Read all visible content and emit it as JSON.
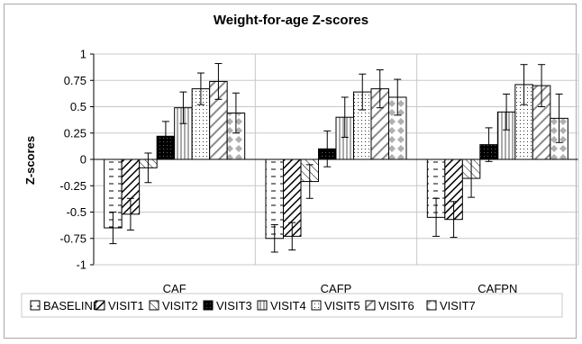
{
  "chart_data": {
    "type": "bar",
    "title": "Weight-for-age Z-scores",
    "xlabel": "",
    "ylabel": "Z-scores",
    "ylim": [
      -1,
      1
    ],
    "yticks": [
      "1",
      "0.75",
      "0.5",
      "0.25",
      "0",
      "-0.25",
      "-0.5",
      "-0.75",
      "-1"
    ],
    "grid": true,
    "legend_position": "bottom",
    "categories": [
      "CAF",
      "CAFP",
      "CAFPN"
    ],
    "series": [
      {
        "name": "BASELINE",
        "pattern": "dashes",
        "values": [
          -0.65,
          -0.75,
          -0.55
        ],
        "errors": [
          0.15,
          0.13,
          0.18
        ]
      },
      {
        "name": "VISIT1",
        "pattern": "diagonal-dense",
        "values": [
          -0.52,
          -0.73,
          -0.57
        ],
        "errors": [
          0.15,
          0.13,
          0.17
        ]
      },
      {
        "name": "VISIT2",
        "pattern": "diagonal-light",
        "values": [
          -0.08,
          -0.21,
          -0.18
        ],
        "errors": [
          0.14,
          0.16,
          0.18
        ]
      },
      {
        "name": "VISIT3",
        "pattern": "solid-black",
        "values": [
          0.22,
          0.1,
          0.14
        ],
        "errors": [
          0.14,
          0.17,
          0.16
        ]
      },
      {
        "name": "VISIT4",
        "pattern": "vertical-lines",
        "values": [
          0.49,
          0.4,
          0.45
        ],
        "errors": [
          0.15,
          0.19,
          0.17
        ]
      },
      {
        "name": "VISIT5",
        "pattern": "dots",
        "values": [
          0.67,
          0.64,
          0.71
        ],
        "errors": [
          0.15,
          0.17,
          0.19
        ]
      },
      {
        "name": "VISIT6",
        "pattern": "wide-diagonal",
        "values": [
          0.74,
          0.67,
          0.7
        ],
        "errors": [
          0.17,
          0.18,
          0.2
        ]
      },
      {
        "name": "VISIT7",
        "pattern": "diamonds",
        "values": [
          0.44,
          0.59,
          0.39
        ],
        "errors": [
          0.19,
          0.17,
          0.23
        ]
      }
    ],
    "colors": {
      "fill": "#ffffff",
      "stroke": "#000000",
      "grid": "#c8c8c8",
      "pattern_gray": "#8a8a8a"
    }
  }
}
